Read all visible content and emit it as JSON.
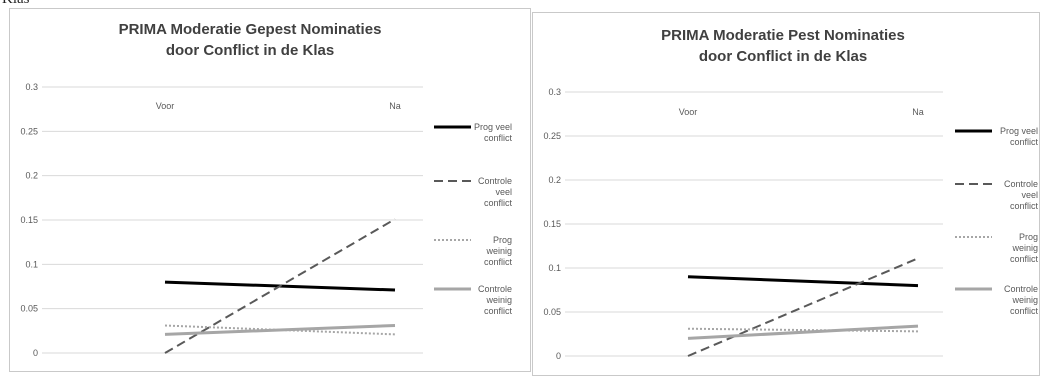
{
  "caption": {
    "text": "Klas"
  },
  "chart_data": [
    {
      "type": "line",
      "title_line1": "PRIMA Moderatie Gepest Nominaties",
      "title_line2": "door Conflict in de Klas",
      "categories": [
        "Voor",
        "Na"
      ],
      "ylim": [
        0,
        0.3
      ],
      "yticks": [
        "0",
        "0.05",
        "0.1",
        "0.15",
        "0.2",
        "0.25",
        "0.3"
      ],
      "grid": true,
      "legend_position": "right",
      "series": [
        {
          "name": "Prog veel conflict",
          "legend_lines": [
            "Prog veel",
            "conflict"
          ],
          "values": [
            0.08,
            0.071
          ],
          "color": "#000000",
          "dash": "solid"
        },
        {
          "name": "Controle veel conflict",
          "legend_lines": [
            "Controle",
            "veel",
            "conflict"
          ],
          "values": [
            0.0,
            0.151
          ],
          "color": "#595959",
          "dash": "dashed"
        },
        {
          "name": "Prog weinig conflict",
          "legend_lines": [
            "Prog",
            "weinig",
            "conflict"
          ],
          "values": [
            0.031,
            0.021
          ],
          "color": "#a6a6a6",
          "dash": "dotted"
        },
        {
          "name": "Controle weinig conflict",
          "legend_lines": [
            "Controle",
            "weinig",
            "conflict"
          ],
          "values": [
            0.021,
            0.031
          ],
          "color": "#a6a6a6",
          "dash": "solid"
        }
      ]
    },
    {
      "type": "line",
      "title_line1": "PRIMA Moderatie Pest Nominaties",
      "title_line2": "door Conflict in de Klas",
      "categories": [
        "Voor",
        "Na"
      ],
      "ylim": [
        0,
        0.3
      ],
      "yticks": [
        "0",
        "0.05",
        "0.1",
        "0.15",
        "0.2",
        "0.25",
        "0.3"
      ],
      "grid": true,
      "legend_position": "right",
      "series": [
        {
          "name": "Prog veel conflict",
          "legend_lines": [
            "Prog veel",
            "conflict"
          ],
          "values": [
            0.09,
            0.08
          ],
          "color": "#000000",
          "dash": "solid"
        },
        {
          "name": "Controle veel conflict",
          "legend_lines": [
            "Controle",
            "veel",
            "conflict"
          ],
          "values": [
            0.0,
            0.111
          ],
          "color": "#595959",
          "dash": "dashed"
        },
        {
          "name": "Prog weinig conflict",
          "legend_lines": [
            "Prog",
            "weinig",
            "conflict"
          ],
          "values": [
            0.031,
            0.028
          ],
          "color": "#a6a6a6",
          "dash": "dotted"
        },
        {
          "name": "Controle weinig conflict",
          "legend_lines": [
            "Controle",
            "weinig",
            "conflict"
          ],
          "values": [
            0.02,
            0.034
          ],
          "color": "#a6a6a6",
          "dash": "solid"
        }
      ]
    }
  ]
}
